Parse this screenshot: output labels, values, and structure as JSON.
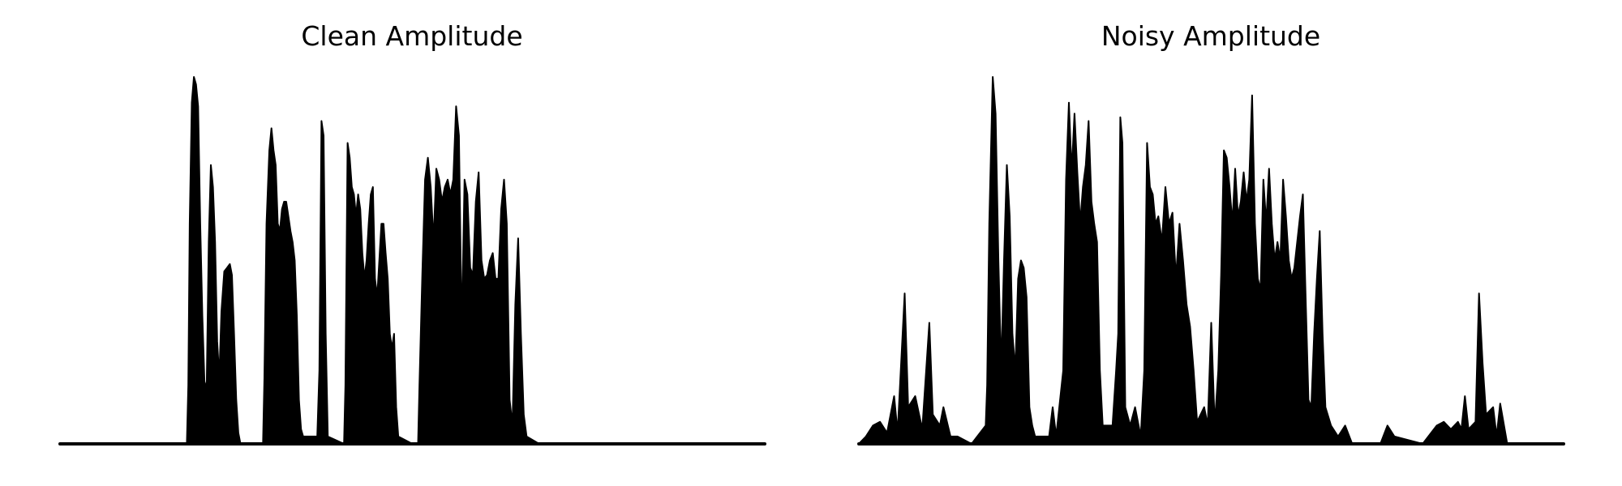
{
  "chart_data": [
    {
      "type": "area",
      "title": "Clean Amplitude",
      "xlabel": "",
      "ylabel": "",
      "axes_visible": false,
      "grid": false,
      "color": "#000000",
      "ylim": [
        0,
        1.0
      ],
      "envelope": [
        {
          "x": 0.0,
          "y": 0.0
        },
        {
          "x": 0.18,
          "y": 0.0
        },
        {
          "x": 0.182,
          "y": 0.16
        },
        {
          "x": 0.184,
          "y": 0.6
        },
        {
          "x": 0.187,
          "y": 0.93
        },
        {
          "x": 0.19,
          "y": 1.0
        },
        {
          "x": 0.193,
          "y": 0.98
        },
        {
          "x": 0.196,
          "y": 0.92
        },
        {
          "x": 0.199,
          "y": 0.6
        },
        {
          "x": 0.202,
          "y": 0.35
        },
        {
          "x": 0.205,
          "y": 0.17
        },
        {
          "x": 0.208,
          "y": 0.15
        },
        {
          "x": 0.211,
          "y": 0.55
        },
        {
          "x": 0.214,
          "y": 0.76
        },
        {
          "x": 0.217,
          "y": 0.7
        },
        {
          "x": 0.22,
          "y": 0.55
        },
        {
          "x": 0.223,
          "y": 0.28
        },
        {
          "x": 0.226,
          "y": 0.18
        },
        {
          "x": 0.229,
          "y": 0.36
        },
        {
          "x": 0.233,
          "y": 0.47
        },
        {
          "x": 0.237,
          "y": 0.48
        },
        {
          "x": 0.241,
          "y": 0.49
        },
        {
          "x": 0.244,
          "y": 0.46
        },
        {
          "x": 0.247,
          "y": 0.3
        },
        {
          "x": 0.25,
          "y": 0.12
        },
        {
          "x": 0.253,
          "y": 0.03
        },
        {
          "x": 0.256,
          "y": 0.0
        },
        {
          "x": 0.288,
          "y": 0.0
        },
        {
          "x": 0.29,
          "y": 0.18
        },
        {
          "x": 0.293,
          "y": 0.6
        },
        {
          "x": 0.297,
          "y": 0.8
        },
        {
          "x": 0.3,
          "y": 0.86
        },
        {
          "x": 0.303,
          "y": 0.8
        },
        {
          "x": 0.306,
          "y": 0.76
        },
        {
          "x": 0.309,
          "y": 0.6
        },
        {
          "x": 0.312,
          "y": 0.58
        },
        {
          "x": 0.315,
          "y": 0.64
        },
        {
          "x": 0.318,
          "y": 0.66
        },
        {
          "x": 0.321,
          "y": 0.66
        },
        {
          "x": 0.324,
          "y": 0.62
        },
        {
          "x": 0.327,
          "y": 0.58
        },
        {
          "x": 0.33,
          "y": 0.55
        },
        {
          "x": 0.333,
          "y": 0.5
        },
        {
          "x": 0.336,
          "y": 0.35
        },
        {
          "x": 0.339,
          "y": 0.12
        },
        {
          "x": 0.342,
          "y": 0.04
        },
        {
          "x": 0.345,
          "y": 0.02
        },
        {
          "x": 0.365,
          "y": 0.02
        },
        {
          "x": 0.368,
          "y": 0.2
        },
        {
          "x": 0.371,
          "y": 0.88
        },
        {
          "x": 0.374,
          "y": 0.84
        },
        {
          "x": 0.377,
          "y": 0.3
        },
        {
          "x": 0.38,
          "y": 0.02
        },
        {
          "x": 0.403,
          "y": 0.0
        },
        {
          "x": 0.405,
          "y": 0.16
        },
        {
          "x": 0.408,
          "y": 0.82
        },
        {
          "x": 0.411,
          "y": 0.78
        },
        {
          "x": 0.414,
          "y": 0.7
        },
        {
          "x": 0.417,
          "y": 0.68
        },
        {
          "x": 0.42,
          "y": 0.62
        },
        {
          "x": 0.423,
          "y": 0.68
        },
        {
          "x": 0.426,
          "y": 0.64
        },
        {
          "x": 0.429,
          "y": 0.52
        },
        {
          "x": 0.432,
          "y": 0.45
        },
        {
          "x": 0.435,
          "y": 0.5
        },
        {
          "x": 0.438,
          "y": 0.6
        },
        {
          "x": 0.441,
          "y": 0.68
        },
        {
          "x": 0.444,
          "y": 0.7
        },
        {
          "x": 0.447,
          "y": 0.45
        },
        {
          "x": 0.45,
          "y": 0.4
        },
        {
          "x": 0.453,
          "y": 0.5
        },
        {
          "x": 0.456,
          "y": 0.6
        },
        {
          "x": 0.459,
          "y": 0.6
        },
        {
          "x": 0.462,
          "y": 0.52
        },
        {
          "x": 0.465,
          "y": 0.45
        },
        {
          "x": 0.468,
          "y": 0.3
        },
        {
          "x": 0.471,
          "y": 0.26
        },
        {
          "x": 0.474,
          "y": 0.3
        },
        {
          "x": 0.477,
          "y": 0.1
        },
        {
          "x": 0.48,
          "y": 0.02
        },
        {
          "x": 0.5,
          "y": 0.0
        },
        {
          "x": 0.508,
          "y": 0.0
        },
        {
          "x": 0.51,
          "y": 0.16
        },
        {
          "x": 0.514,
          "y": 0.46
        },
        {
          "x": 0.518,
          "y": 0.72
        },
        {
          "x": 0.522,
          "y": 0.78
        },
        {
          "x": 0.526,
          "y": 0.7
        },
        {
          "x": 0.53,
          "y": 0.55
        },
        {
          "x": 0.534,
          "y": 0.75
        },
        {
          "x": 0.538,
          "y": 0.72
        },
        {
          "x": 0.542,
          "y": 0.66
        },
        {
          "x": 0.546,
          "y": 0.7
        },
        {
          "x": 0.55,
          "y": 0.72
        },
        {
          "x": 0.554,
          "y": 0.68
        },
        {
          "x": 0.558,
          "y": 0.72
        },
        {
          "x": 0.562,
          "y": 0.92
        },
        {
          "x": 0.566,
          "y": 0.84
        },
        {
          "x": 0.57,
          "y": 0.3
        },
        {
          "x": 0.574,
          "y": 0.72
        },
        {
          "x": 0.578,
          "y": 0.68
        },
        {
          "x": 0.582,
          "y": 0.48
        },
        {
          "x": 0.586,
          "y": 0.46
        },
        {
          "x": 0.59,
          "y": 0.66
        },
        {
          "x": 0.594,
          "y": 0.74
        },
        {
          "x": 0.598,
          "y": 0.5
        },
        {
          "x": 0.602,
          "y": 0.45
        },
        {
          "x": 0.606,
          "y": 0.46
        },
        {
          "x": 0.61,
          "y": 0.5
        },
        {
          "x": 0.614,
          "y": 0.52
        },
        {
          "x": 0.618,
          "y": 0.45
        },
        {
          "x": 0.622,
          "y": 0.45
        },
        {
          "x": 0.626,
          "y": 0.64
        },
        {
          "x": 0.63,
          "y": 0.72
        },
        {
          "x": 0.634,
          "y": 0.6
        },
        {
          "x": 0.638,
          "y": 0.12
        },
        {
          "x": 0.642,
          "y": 0.05
        },
        {
          "x": 0.646,
          "y": 0.38
        },
        {
          "x": 0.65,
          "y": 0.56
        },
        {
          "x": 0.654,
          "y": 0.3
        },
        {
          "x": 0.658,
          "y": 0.08
        },
        {
          "x": 0.662,
          "y": 0.02
        },
        {
          "x": 0.68,
          "y": 0.0
        },
        {
          "x": 1.0,
          "y": 0.0
        }
      ]
    },
    {
      "type": "area",
      "title": "Noisy Amplitude",
      "xlabel": "",
      "ylabel": "",
      "axes_visible": false,
      "grid": false,
      "color": "#000000",
      "ylim": [
        0,
        1.0
      ],
      "envelope": [
        {
          "x": 0.0,
          "y": 0.0
        },
        {
          "x": 0.01,
          "y": 0.02
        },
        {
          "x": 0.02,
          "y": 0.05
        },
        {
          "x": 0.03,
          "y": 0.06
        },
        {
          "x": 0.04,
          "y": 0.03
        },
        {
          "x": 0.05,
          "y": 0.13
        },
        {
          "x": 0.055,
          "y": 0.03
        },
        {
          "x": 0.065,
          "y": 0.41
        },
        {
          "x": 0.07,
          "y": 0.1
        },
        {
          "x": 0.08,
          "y": 0.13
        },
        {
          "x": 0.09,
          "y": 0.04
        },
        {
          "x": 0.1,
          "y": 0.33
        },
        {
          "x": 0.105,
          "y": 0.08
        },
        {
          "x": 0.115,
          "y": 0.05
        },
        {
          "x": 0.12,
          "y": 0.1
        },
        {
          "x": 0.13,
          "y": 0.02
        },
        {
          "x": 0.14,
          "y": 0.02
        },
        {
          "x": 0.16,
          "y": 0.0
        },
        {
          "x": 0.18,
          "y": 0.05
        },
        {
          "x": 0.182,
          "y": 0.16
        },
        {
          "x": 0.185,
          "y": 0.6
        },
        {
          "x": 0.19,
          "y": 1.0
        },
        {
          "x": 0.194,
          "y": 0.9
        },
        {
          "x": 0.198,
          "y": 0.5
        },
        {
          "x": 0.202,
          "y": 0.2
        },
        {
          "x": 0.206,
          "y": 0.5
        },
        {
          "x": 0.21,
          "y": 0.76
        },
        {
          "x": 0.214,
          "y": 0.62
        },
        {
          "x": 0.218,
          "y": 0.3
        },
        {
          "x": 0.222,
          "y": 0.2
        },
        {
          "x": 0.226,
          "y": 0.45
        },
        {
          "x": 0.23,
          "y": 0.5
        },
        {
          "x": 0.234,
          "y": 0.48
        },
        {
          "x": 0.238,
          "y": 0.4
        },
        {
          "x": 0.242,
          "y": 0.1
        },
        {
          "x": 0.246,
          "y": 0.05
        },
        {
          "x": 0.25,
          "y": 0.02
        },
        {
          "x": 0.27,
          "y": 0.02
        },
        {
          "x": 0.275,
          "y": 0.1
        },
        {
          "x": 0.28,
          "y": 0.02
        },
        {
          "x": 0.29,
          "y": 0.2
        },
        {
          "x": 0.294,
          "y": 0.72
        },
        {
          "x": 0.298,
          "y": 0.93
        },
        {
          "x": 0.302,
          "y": 0.74
        },
        {
          "x": 0.306,
          "y": 0.9
        },
        {
          "x": 0.31,
          "y": 0.74
        },
        {
          "x": 0.314,
          "y": 0.6
        },
        {
          "x": 0.318,
          "y": 0.7
        },
        {
          "x": 0.322,
          "y": 0.76
        },
        {
          "x": 0.326,
          "y": 0.88
        },
        {
          "x": 0.33,
          "y": 0.66
        },
        {
          "x": 0.334,
          "y": 0.6
        },
        {
          "x": 0.338,
          "y": 0.55
        },
        {
          "x": 0.342,
          "y": 0.2
        },
        {
          "x": 0.346,
          "y": 0.05
        },
        {
          "x": 0.36,
          "y": 0.05
        },
        {
          "x": 0.365,
          "y": 0.2
        },
        {
          "x": 0.368,
          "y": 0.3
        },
        {
          "x": 0.371,
          "y": 0.89
        },
        {
          "x": 0.374,
          "y": 0.82
        },
        {
          "x": 0.378,
          "y": 0.1
        },
        {
          "x": 0.385,
          "y": 0.05
        },
        {
          "x": 0.392,
          "y": 0.1
        },
        {
          "x": 0.4,
          "y": 0.02
        },
        {
          "x": 0.405,
          "y": 0.2
        },
        {
          "x": 0.409,
          "y": 0.82
        },
        {
          "x": 0.413,
          "y": 0.7
        },
        {
          "x": 0.417,
          "y": 0.68
        },
        {
          "x": 0.421,
          "y": 0.6
        },
        {
          "x": 0.425,
          "y": 0.62
        },
        {
          "x": 0.43,
          "y": 0.55
        },
        {
          "x": 0.435,
          "y": 0.7
        },
        {
          "x": 0.44,
          "y": 0.6
        },
        {
          "x": 0.445,
          "y": 0.63
        },
        {
          "x": 0.45,
          "y": 0.45
        },
        {
          "x": 0.455,
          "y": 0.6
        },
        {
          "x": 0.46,
          "y": 0.5
        },
        {
          "x": 0.465,
          "y": 0.38
        },
        {
          "x": 0.47,
          "y": 0.32
        },
        {
          "x": 0.475,
          "y": 0.2
        },
        {
          "x": 0.48,
          "y": 0.06
        },
        {
          "x": 0.49,
          "y": 0.1
        },
        {
          "x": 0.495,
          "y": 0.05
        },
        {
          "x": 0.5,
          "y": 0.33
        },
        {
          "x": 0.505,
          "y": 0.05
        },
        {
          "x": 0.51,
          "y": 0.2
        },
        {
          "x": 0.514,
          "y": 0.46
        },
        {
          "x": 0.518,
          "y": 0.8
        },
        {
          "x": 0.522,
          "y": 0.78
        },
        {
          "x": 0.526,
          "y": 0.7
        },
        {
          "x": 0.53,
          "y": 0.6
        },
        {
          "x": 0.534,
          "y": 0.75
        },
        {
          "x": 0.538,
          "y": 0.62
        },
        {
          "x": 0.542,
          "y": 0.66
        },
        {
          "x": 0.546,
          "y": 0.74
        },
        {
          "x": 0.55,
          "y": 0.66
        },
        {
          "x": 0.554,
          "y": 0.72
        },
        {
          "x": 0.558,
          "y": 0.95
        },
        {
          "x": 0.562,
          "y": 0.6
        },
        {
          "x": 0.566,
          "y": 0.45
        },
        {
          "x": 0.57,
          "y": 0.42
        },
        {
          "x": 0.574,
          "y": 0.72
        },
        {
          "x": 0.578,
          "y": 0.6
        },
        {
          "x": 0.582,
          "y": 0.75
        },
        {
          "x": 0.586,
          "y": 0.6
        },
        {
          "x": 0.59,
          "y": 0.5
        },
        {
          "x": 0.594,
          "y": 0.55
        },
        {
          "x": 0.598,
          "y": 0.5
        },
        {
          "x": 0.602,
          "y": 0.72
        },
        {
          "x": 0.606,
          "y": 0.62
        },
        {
          "x": 0.61,
          "y": 0.5
        },
        {
          "x": 0.614,
          "y": 0.45
        },
        {
          "x": 0.618,
          "y": 0.48
        },
        {
          "x": 0.622,
          "y": 0.55
        },
        {
          "x": 0.626,
          "y": 0.62
        },
        {
          "x": 0.63,
          "y": 0.68
        },
        {
          "x": 0.634,
          "y": 0.4
        },
        {
          "x": 0.638,
          "y": 0.12
        },
        {
          "x": 0.642,
          "y": 0.1
        },
        {
          "x": 0.646,
          "y": 0.3
        },
        {
          "x": 0.65,
          "y": 0.45
        },
        {
          "x": 0.654,
          "y": 0.58
        },
        {
          "x": 0.658,
          "y": 0.3
        },
        {
          "x": 0.662,
          "y": 0.1
        },
        {
          "x": 0.67,
          "y": 0.05
        },
        {
          "x": 0.68,
          "y": 0.02
        },
        {
          "x": 0.69,
          "y": 0.05
        },
        {
          "x": 0.7,
          "y": 0.0
        },
        {
          "x": 0.74,
          "y": 0.0
        },
        {
          "x": 0.75,
          "y": 0.05
        },
        {
          "x": 0.76,
          "y": 0.02
        },
        {
          "x": 0.8,
          "y": 0.0
        },
        {
          "x": 0.82,
          "y": 0.05
        },
        {
          "x": 0.83,
          "y": 0.06
        },
        {
          "x": 0.84,
          "y": 0.04
        },
        {
          "x": 0.85,
          "y": 0.06
        },
        {
          "x": 0.855,
          "y": 0.04
        },
        {
          "x": 0.86,
          "y": 0.13
        },
        {
          "x": 0.865,
          "y": 0.04
        },
        {
          "x": 0.87,
          "y": 0.05
        },
        {
          "x": 0.875,
          "y": 0.06
        },
        {
          "x": 0.88,
          "y": 0.41
        },
        {
          "x": 0.885,
          "y": 0.22
        },
        {
          "x": 0.89,
          "y": 0.08
        },
        {
          "x": 0.9,
          "y": 0.1
        },
        {
          "x": 0.905,
          "y": 0.02
        },
        {
          "x": 0.91,
          "y": 0.11
        },
        {
          "x": 0.92,
          "y": 0.0
        },
        {
          "x": 1.0,
          "y": 0.0
        }
      ]
    }
  ]
}
